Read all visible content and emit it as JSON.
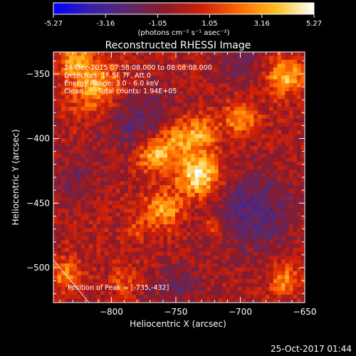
{
  "colorbar": {
    "tick_labels": [
      "-5.27",
      "-3.16",
      "-1.05",
      "1.05",
      "3.16",
      "5.27"
    ],
    "ticks": [
      -5.27,
      -3.16,
      -1.05,
      1.05,
      3.16,
      5.27
    ],
    "range": [
      -5.27,
      5.27
    ],
    "unit_label": "(photons cm⁻² s⁻¹ asec⁻²)",
    "colors": [
      "#0000ff",
      "#3a1fa8",
      "#5a2a6a",
      "#8a1a2a",
      "#d02008",
      "#ff6a00",
      "#ffc020",
      "#ffffff"
    ]
  },
  "chart_data": {
    "type": "heatmap",
    "title": "Reconstructed RHESSI Image",
    "xlabel": "Heliocentric X (arcsec)",
    "ylabel": "Heliocentric Y (arcsec)",
    "xlim": [
      -845,
      -650
    ],
    "ylim": [
      -527,
      -333
    ],
    "xticks": [
      -800,
      -750,
      -700,
      -650
    ],
    "yticks": [
      -350,
      -400,
      -450,
      -500
    ],
    "xtick_labels": [
      "−800",
      "−750",
      "−700",
      "−650"
    ],
    "ytick_labels": [
      "−350",
      "−400",
      "−450",
      "−500"
    ],
    "annotations": {
      "time_range": "24-Dec-2015 07:58:08.000 to 08:08:08.000",
      "detectors": "Detectors: 1F 5F 7F, Att 0",
      "energy_range": "Energy Range: 3.0 - 6.0 keV",
      "method": "Clean",
      "total_counts": "Total counts: 1.94E+05",
      "peak": "Position of Peak = [-735,-432]"
    },
    "peak": [
      -735,
      -432
    ],
    "sources": [
      {
        "x": -732,
        "y": -428,
        "amp": 5.0,
        "sigma": 12
      },
      {
        "x": -767,
        "y": -413,
        "amp": 3.8,
        "sigma": 10
      },
      {
        "x": -748,
        "y": -400,
        "amp": 3.0,
        "sigma": 11
      },
      {
        "x": -760,
        "y": -455,
        "amp": 3.3,
        "sigma": 10
      },
      {
        "x": -729,
        "y": -395,
        "amp": 2.8,
        "sigma": 8
      },
      {
        "x": -812,
        "y": -360,
        "amp": 3.5,
        "sigma": 14
      },
      {
        "x": -828,
        "y": -340,
        "amp": 3.0,
        "sigma": 8
      },
      {
        "x": -665,
        "y": -352,
        "amp": 3.8,
        "sigma": 10
      },
      {
        "x": -700,
        "y": -385,
        "amp": 3.0,
        "sigma": 9
      },
      {
        "x": -720,
        "y": -468,
        "amp": 2.2,
        "sigma": 5
      },
      {
        "x": -665,
        "y": -510,
        "amp": 2.8,
        "sigma": 8
      },
      {
        "x": -836,
        "y": -505,
        "amp": 2.6,
        "sigma": 8
      },
      {
        "x": -790,
        "y": -510,
        "amp": 1.6,
        "sigma": 7
      },
      {
        "x": -780,
        "y": -470,
        "amp": 1.4,
        "sigma": 5
      },
      {
        "x": -778,
        "y": -386,
        "amp": -2.0,
        "sigma": 20
      },
      {
        "x": -690,
        "y": -455,
        "amp": -2.6,
        "sigma": 22
      },
      {
        "x": -700,
        "y": -340,
        "amp": -1.6,
        "sigma": 14
      },
      {
        "x": -828,
        "y": -433,
        "amp": -1.4,
        "sigma": 14
      },
      {
        "x": -748,
        "y": -515,
        "amp": -1.6,
        "sigma": 14
      }
    ]
  },
  "footer": {
    "date": "25-Oct-2017 01:44"
  }
}
